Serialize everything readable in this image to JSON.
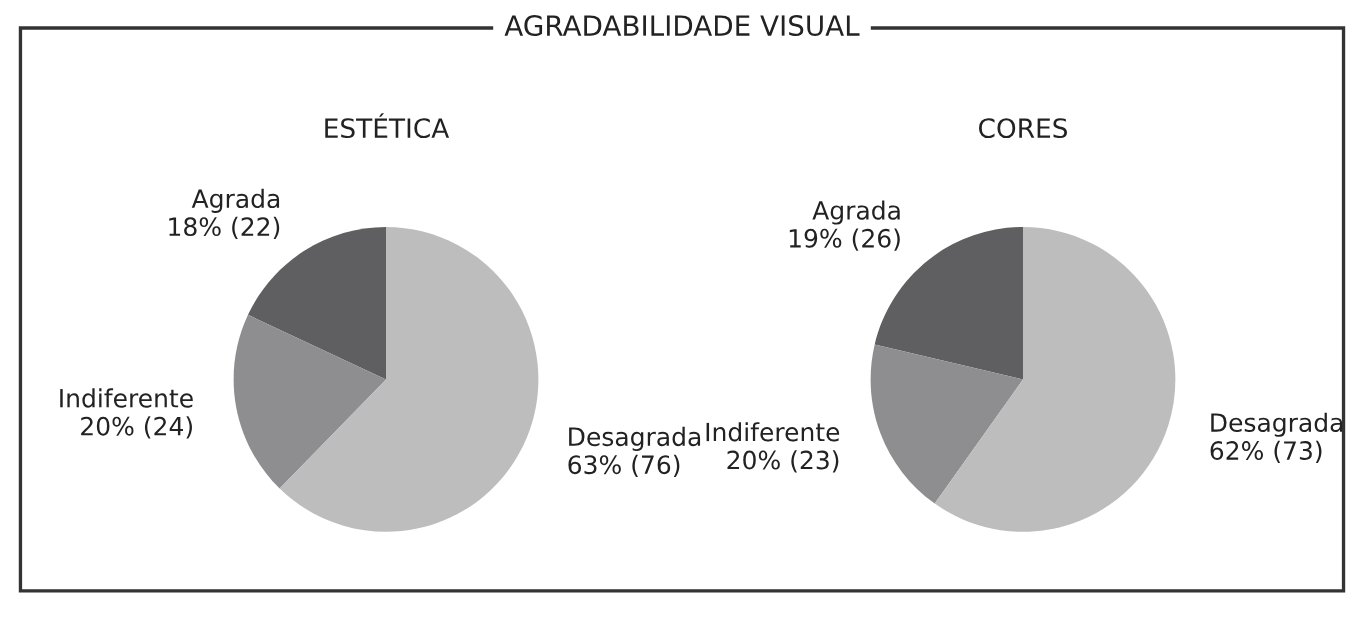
{
  "chart_data": [
    {
      "type": "other",
      "title": "AGRADABILIDADE VISUAL"
    },
    {
      "type": "pie",
      "title": "ESTÉTICA",
      "categories": [
        "Agrada",
        "Indiferente",
        "Desagrada"
      ],
      "values": [
        22,
        24,
        76
      ],
      "value_labels": [
        "18% (22)",
        "20% (24)",
        "63% (76)"
      ],
      "colors": [
        "#5f5f61",
        "#8e8e90",
        "#bdbdbd"
      ]
    },
    {
      "type": "pie",
      "title": "CORES",
      "categories": [
        "Agrada",
        "Indiferente",
        "Desagrada"
      ],
      "values": [
        26,
        23,
        73
      ],
      "value_labels": [
        "19% (26)",
        "20% (23)",
        "62% (73)"
      ],
      "colors": [
        "#5f5f61",
        "#8e8e90",
        "#bdbdbd"
      ]
    }
  ]
}
